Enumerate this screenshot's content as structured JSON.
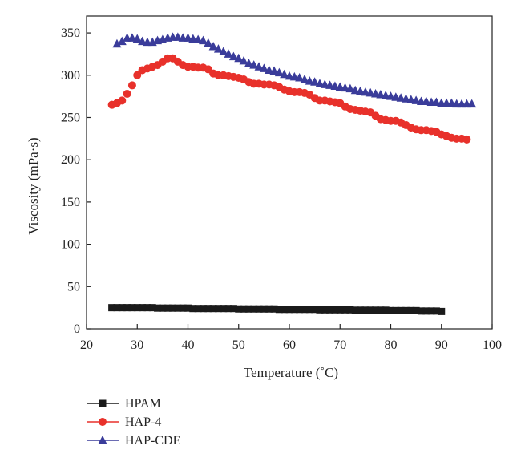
{
  "chart_data": {
    "type": "scatter",
    "xlabel": "Temperature (˚C)",
    "ylabel": "Viscosity (mPa·s)",
    "xlim": [
      20,
      100
    ],
    "ylim": [
      0,
      370
    ],
    "xticks": [
      20,
      30,
      40,
      50,
      60,
      70,
      80,
      90,
      100
    ],
    "yticks": [
      0,
      50,
      100,
      150,
      200,
      250,
      300,
      350
    ],
    "grid": false,
    "legend": "bottom-left",
    "series": [
      {
        "name": "HPAM",
        "marker": "square",
        "color": "#1a1a1a",
        "x": [
          25,
          26,
          27,
          28,
          29,
          30,
          31,
          32,
          33,
          34,
          35,
          36,
          37,
          38,
          39,
          40,
          41,
          42,
          43,
          44,
          45,
          46,
          47,
          48,
          49,
          50,
          51,
          52,
          53,
          54,
          55,
          56,
          57,
          58,
          59,
          60,
          61,
          62,
          63,
          64,
          65,
          66,
          67,
          68,
          69,
          70,
          71,
          72,
          73,
          74,
          75,
          76,
          77,
          78,
          79,
          80,
          81,
          82,
          83,
          84,
          85,
          86,
          87,
          88,
          89,
          90
        ],
        "y": [
          25,
          25,
          25,
          25,
          25,
          25,
          25,
          25,
          25,
          24.5,
          24.5,
          24.5,
          24.5,
          24.5,
          24.5,
          24.5,
          24,
          24,
          24,
          24,
          24,
          24,
          24,
          24,
          24,
          23.5,
          23.5,
          23.5,
          23.5,
          23.5,
          23.5,
          23.5,
          23.5,
          23,
          23,
          23,
          23,
          23,
          23,
          23,
          23,
          22.5,
          22.5,
          22.5,
          22.5,
          22.5,
          22.5,
          22.5,
          22,
          22,
          22,
          22,
          22,
          22,
          22,
          21.5,
          21.5,
          21.5,
          21.5,
          21.5,
          21.5,
          21,
          21,
          21,
          21,
          20.5
        ]
      },
      {
        "name": "HAP-4",
        "marker": "circle",
        "color": "#e8312b",
        "x": [
          25,
          26,
          27,
          28,
          29,
          30,
          31,
          32,
          33,
          34,
          35,
          36,
          37,
          38,
          39,
          40,
          41,
          42,
          43,
          44,
          45,
          46,
          47,
          48,
          49,
          50,
          51,
          52,
          53,
          54,
          55,
          56,
          57,
          58,
          59,
          60,
          61,
          62,
          63,
          64,
          65,
          66,
          67,
          68,
          69,
          70,
          71,
          72,
          73,
          74,
          75,
          76,
          77,
          78,
          79,
          80,
          81,
          82,
          83,
          84,
          85,
          86,
          87,
          88,
          89,
          90,
          91,
          92,
          93,
          94,
          95
        ],
        "y": [
          265,
          267,
          270,
          278,
          288,
          300,
          306,
          308,
          310,
          312,
          316,
          320,
          320,
          316,
          312,
          310,
          310,
          309,
          309,
          307,
          302,
          300,
          300,
          299,
          298,
          297,
          295,
          292,
          290,
          290,
          289,
          289,
          288,
          286,
          283,
          281,
          280,
          280,
          279,
          277,
          273,
          270,
          270,
          269,
          268,
          267,
          263,
          260,
          259,
          258,
          257,
          256,
          252,
          248,
          247,
          246,
          246,
          244,
          241,
          238,
          236,
          235,
          235,
          234,
          233,
          230,
          228,
          226,
          225,
          225,
          224
        ]
      },
      {
        "name": "HAP-CDE",
        "marker": "triangle",
        "color": "#3a3c9a",
        "x": [
          26,
          27,
          28,
          29,
          30,
          31,
          32,
          33,
          34,
          35,
          36,
          37,
          38,
          39,
          40,
          41,
          42,
          43,
          44,
          45,
          46,
          47,
          48,
          49,
          50,
          51,
          52,
          53,
          54,
          55,
          56,
          57,
          58,
          59,
          60,
          61,
          62,
          63,
          64,
          65,
          66,
          67,
          68,
          69,
          70,
          71,
          72,
          73,
          74,
          75,
          76,
          77,
          78,
          79,
          80,
          81,
          82,
          83,
          84,
          85,
          86,
          87,
          88,
          89,
          90,
          91,
          92,
          93,
          94,
          95,
          96
        ],
        "y": [
          337,
          340,
          344,
          344,
          343,
          340,
          339,
          339,
          341,
          342,
          344,
          345,
          345,
          344,
          344,
          343,
          342,
          341,
          338,
          334,
          331,
          328,
          325,
          322,
          320,
          317,
          314,
          312,
          310,
          308,
          306,
          305,
          303,
          301,
          299,
          298,
          297,
          295,
          293,
          292,
          290,
          289,
          288,
          287,
          286,
          285,
          284,
          282,
          281,
          280,
          279,
          278,
          277,
          276,
          275,
          274,
          273,
          272,
          271,
          270,
          269,
          269,
          268,
          268,
          267,
          267,
          267,
          266,
          266,
          266,
          266
        ]
      }
    ]
  }
}
